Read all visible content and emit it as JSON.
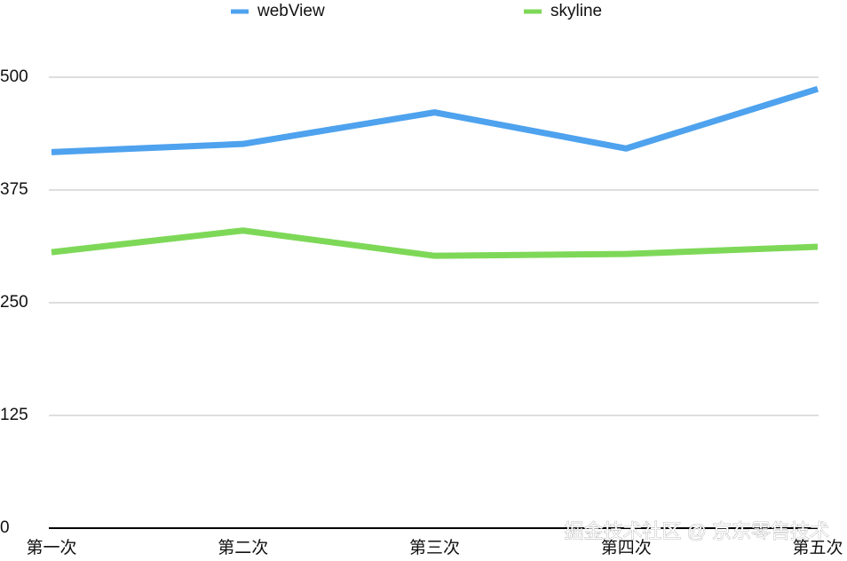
{
  "chart_data": {
    "type": "line",
    "categories": [
      "第一次",
      "第二次",
      "第三次",
      "第四次",
      "第五次"
    ],
    "series": [
      {
        "name": "webView",
        "color": "#4ea2ee",
        "values": [
          417,
          426,
          461,
          421,
          487
        ]
      },
      {
        "name": "skyline",
        "color": "#7ed858",
        "values": [
          306,
          330,
          302,
          304,
          312
        ]
      }
    ],
    "ylim": [
      0,
      500
    ],
    "yticks": [
      0,
      125,
      250,
      375,
      500
    ],
    "grid": true,
    "legend": "top",
    "watermark": "掘金技术社区 @ 京东零售技术"
  }
}
